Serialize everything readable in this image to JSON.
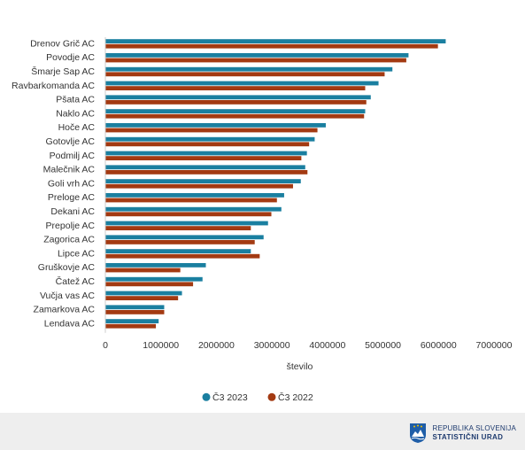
{
  "chart_data": {
    "type": "bar",
    "orientation": "horizontal",
    "categories": [
      "Drenov Grič AC",
      "Povodje AC",
      "Šmarje Sap AC",
      "Ravbarkomanda AC",
      "Pšata AC",
      "Naklo AC",
      "Hoče AC",
      "Gotovlje AC",
      "Podmilj AC",
      "Malečnik AC",
      "Goli vrh AC",
      "Preloge AC",
      "Dekani AC",
      "Prepolje AC",
      "Zagorica AC",
      "Lipce AC",
      "Gruškovje AC",
      "Čatež AC",
      "Vučja vas AC",
      "Zamarkova AC",
      "Lendava AC"
    ],
    "series": [
      {
        "name": "Č3 2023",
        "color": "#1a7fa0",
        "values": [
          6130000,
          5460000,
          5170000,
          4920000,
          4780000,
          4680000,
          3970000,
          3770000,
          3630000,
          3600000,
          3520000,
          3220000,
          3170000,
          2930000,
          2850000,
          2620000,
          1810000,
          1750000,
          1380000,
          1060000,
          960000
        ]
      },
      {
        "name": "Č3 2022",
        "color": "#a33a12",
        "values": [
          5990000,
          5420000,
          5030000,
          4680000,
          4700000,
          4660000,
          3820000,
          3670000,
          3530000,
          3640000,
          3380000,
          3090000,
          2990000,
          2620000,
          2690000,
          2780000,
          1350000,
          1580000,
          1310000,
          1060000,
          910000
        ]
      }
    ],
    "xlabel": "število",
    "xlim": [
      0,
      7000000
    ],
    "xticks": [
      0,
      1000000,
      2000000,
      3000000,
      4000000,
      5000000,
      6000000,
      7000000
    ],
    "xtick_labels": [
      "0",
      "1000000",
      "2000000",
      "3000000",
      "4000000",
      "5000000",
      "6000000",
      "7000000"
    ],
    "grid": false,
    "legend_position": "bottom"
  },
  "footer": {
    "logo_line1": "REPUBLIKA SLOVENIJA",
    "logo_line2": "STATISTIČNI URAD"
  }
}
